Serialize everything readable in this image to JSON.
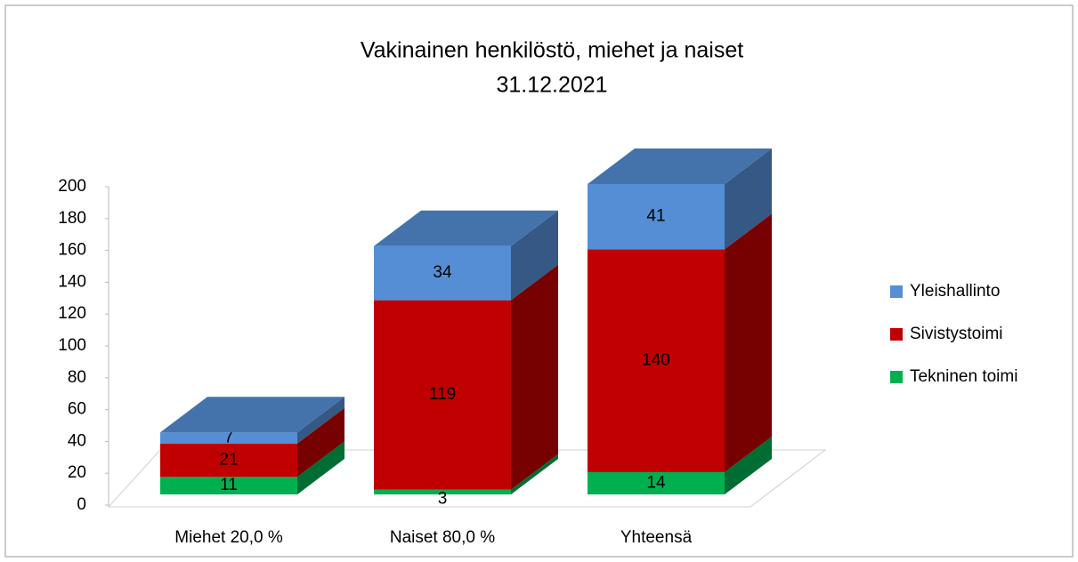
{
  "chart_data": {
    "type": "bar3d_stacked",
    "title": "Vakinainen henkilöstö, miehet ja naiset",
    "subtitle": "31.12.2021",
    "categories": [
      "Miehet 20,0 %",
      "Naiset 80,0 %",
      "Yhteensä"
    ],
    "series": [
      {
        "name": "Tekninen toimi",
        "color": "#00b050",
        "values": [
          11,
          3,
          14
        ]
      },
      {
        "name": "Sivistystoimi",
        "color": "#c00000",
        "values": [
          21,
          119,
          140
        ]
      },
      {
        "name": "Yleishallinto",
        "color": "#558ed5",
        "values": [
          7,
          34,
          41
        ]
      }
    ],
    "ylim": [
      0,
      200
    ],
    "yticks": [
      0,
      20,
      40,
      60,
      80,
      100,
      120,
      140,
      160,
      180,
      200
    ],
    "legend": "right"
  }
}
